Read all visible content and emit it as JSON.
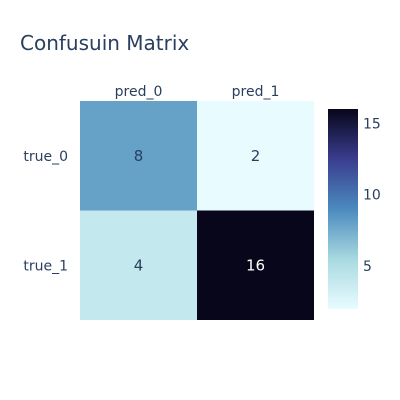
{
  "chart_data": {
    "type": "heatmap",
    "title": "Confusuin Matrix",
    "x_categories": [
      "pred_0",
      "pred_1"
    ],
    "y_categories": [
      "true_0",
      "true_1"
    ],
    "z": [
      [
        8,
        2
      ],
      [
        4,
        16
      ]
    ],
    "colorscale": [
      "#e8fcff",
      "#a8d9e0",
      "#4b8abe",
      "#3a3d8f",
      "#07061a"
    ],
    "colorbar": {
      "range": [
        2,
        16
      ],
      "ticks": [
        5,
        10,
        15
      ]
    }
  }
}
